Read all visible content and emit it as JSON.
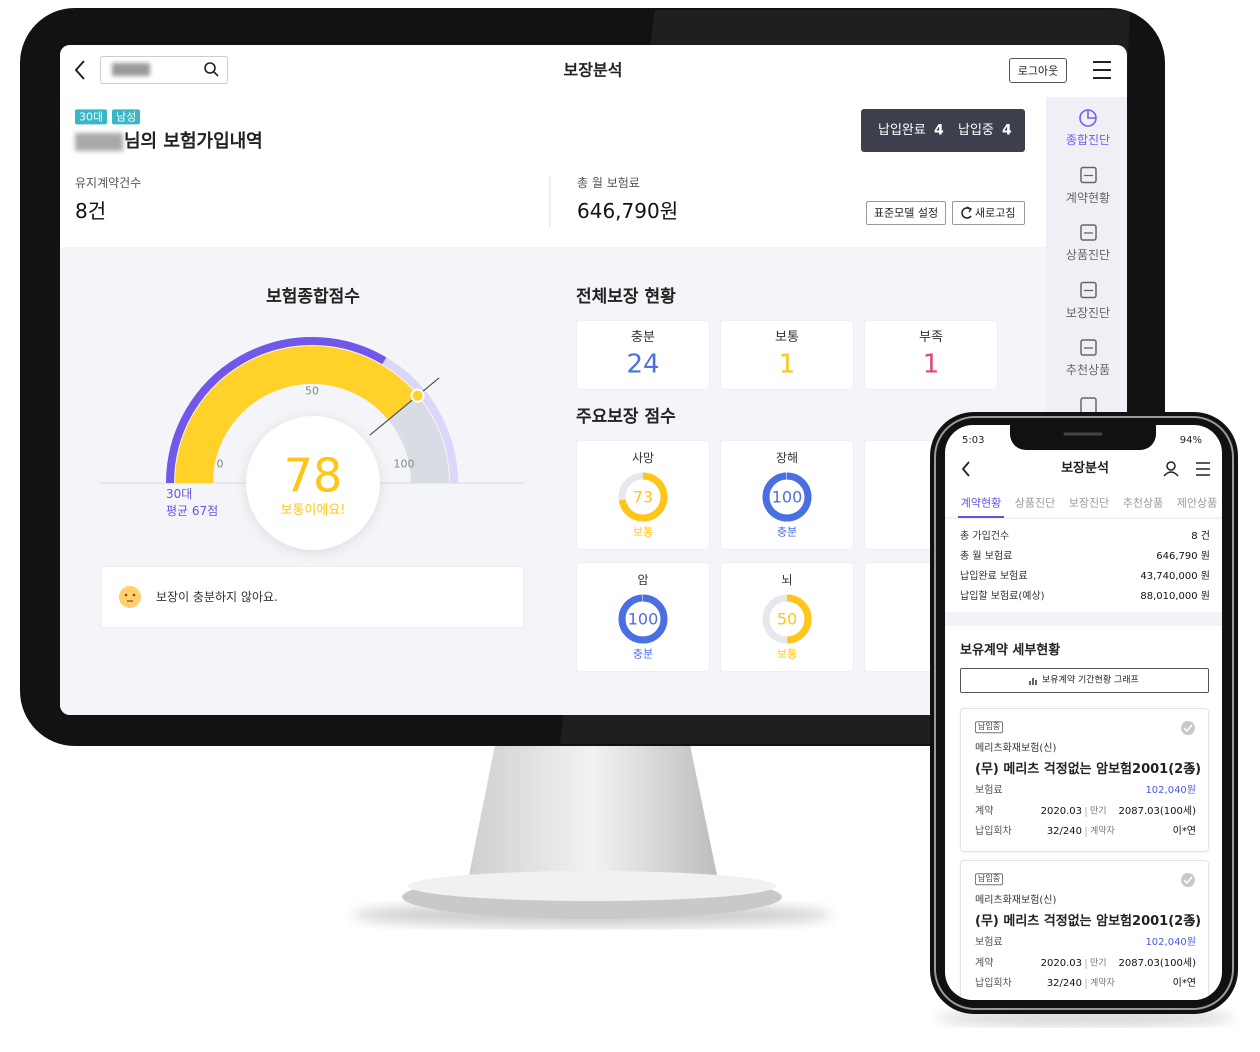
{
  "header": {
    "title": "보장분석",
    "logout": "로그아웃"
  },
  "profile": {
    "tags": [
      "30대",
      "남성"
    ],
    "title": "님의 보험가입내역"
  },
  "payment_status": [
    {
      "label": "납입완료",
      "count": 4
    },
    {
      "label": "납입중",
      "count": 4
    }
  ],
  "summary": [
    {
      "label": "유지계약건수",
      "value": "8건"
    },
    {
      "label": "총 월 보험료",
      "value": "646,790원"
    }
  ],
  "actions": [
    "표준모델 설정",
    "새로고침"
  ],
  "sidebar": [
    {
      "label": "종합진단",
      "active": true
    },
    {
      "label": "계약현황",
      "active": false
    },
    {
      "label": "상품진단",
      "active": false
    },
    {
      "label": "보장진단",
      "active": false
    },
    {
      "label": "추천상품",
      "active": false
    }
  ],
  "score_panel": {
    "title": "보험종합점수",
    "score": 78,
    "status": "보통이에요!",
    "range": [
      0,
      100
    ],
    "ticks": [
      0,
      50,
      100
    ],
    "group": "30대",
    "average": {
      "value": 67,
      "label": "평균 67점"
    },
    "message": "보장이 충분하지 않아요."
  },
  "overall": {
    "title": "전체보장 현황",
    "items": [
      {
        "label": "충분",
        "value": 24,
        "color": "#4a72e0"
      },
      {
        "label": "보통",
        "value": 1,
        "color": "#ffc61a"
      },
      {
        "label": "부족",
        "value": 1,
        "color": "#e0457b"
      }
    ]
  },
  "major": {
    "title": "주요보장 점수",
    "items": [
      {
        "label": "사망",
        "value": 73,
        "status": "보통",
        "color": "#ffc61a"
      },
      {
        "label": "장해",
        "value": 100,
        "status": "충분",
        "color": "#4a6fe3"
      },
      {
        "label": "암",
        "value": 100,
        "status": "충분",
        "color": "#4a6fe3"
      },
      {
        "label": "뇌",
        "value": 50,
        "status": "보통",
        "color": "#ffc61a"
      }
    ]
  },
  "mobile": {
    "status_bar": {
      "time": "5:03",
      "battery": "94%"
    },
    "title": "보장분석",
    "tabs": [
      {
        "label": "계약현황",
        "active": true
      },
      {
        "label": "상품진단",
        "active": false
      },
      {
        "label": "보장진단",
        "active": false
      },
      {
        "label": "추천상품",
        "active": false
      },
      {
        "label": "제안상품",
        "active": false
      }
    ],
    "summary": [
      {
        "label": "총 가입건수",
        "value": "8 건"
      },
      {
        "label": "총 월 보험료",
        "value": "646,790 원"
      },
      {
        "label": "납입완료 보험료",
        "value": "43,740,000 원"
      },
      {
        "label": "납입할 보험료(예상)",
        "value": "88,010,000 원"
      }
    ],
    "section_title": "보유계약 세부현황",
    "graph_button": "보유계약 기간현황 그래프",
    "contracts": [
      {
        "status": "납입중",
        "company": "메리츠화재보험(신)",
        "product": "(무) 메리츠 걱정없는 암보험2001(2종)",
        "premium_label": "보험료",
        "premium": "102,040원",
        "start_label": "계약",
        "start": "2020.03",
        "maturity_label": "만기",
        "maturity": "2087.03(100세)",
        "round_label": "납입회차",
        "round": "32/240",
        "holder_label": "계약자",
        "holder": "이*연"
      },
      {
        "status": "납입중",
        "company": "메리츠화재보험(신)",
        "product": "(무) 메리츠 걱정없는 암보험2001(2종)",
        "premium_label": "보험료",
        "premium": "102,040원",
        "start_label": "계약",
        "start": "2020.03",
        "maturity_label": "만기",
        "maturity": "2087.03(100세)",
        "round_label": "납입회차",
        "round": "32/240",
        "holder_label": "계약자",
        "holder": "이*연"
      }
    ]
  }
}
